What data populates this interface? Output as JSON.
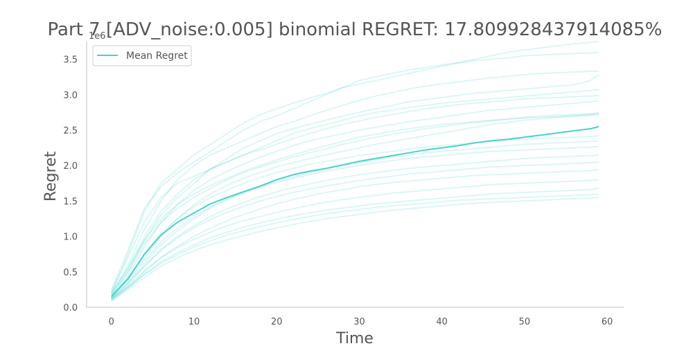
{
  "chart_data": {
    "type": "line",
    "title": "Part 7 [ADV_noise:0.005] binomial REGRET: 17.809928437914085%",
    "xlabel": "Time",
    "ylabel": "Regret",
    "y_offset_label": "1e6",
    "xlim": [
      -3,
      62
    ],
    "ylim": [
      0,
      3.75
    ],
    "xticks": [
      0,
      10,
      20,
      30,
      40,
      50,
      60
    ],
    "yticks": [
      0.0,
      0.5,
      1.0,
      1.5,
      2.0,
      2.5,
      3.0,
      3.5
    ],
    "xtick_labels": [
      "0",
      "10",
      "20",
      "30",
      "40",
      "50",
      "60"
    ],
    "ytick_labels": [
      "0.0",
      "0.5",
      "1.0",
      "1.5",
      "2.0",
      "2.5",
      "3.0",
      "3.5"
    ],
    "legend": {
      "placement": "top-left",
      "entries": [
        "Mean Regret"
      ]
    },
    "colors": {
      "series": "#48d1cc",
      "axis": "#cccccc",
      "text": "#555555"
    },
    "grid": false,
    "mean": {
      "name": "Mean Regret",
      "x": [
        0,
        2,
        4,
        6,
        8,
        10,
        12,
        14,
        16,
        18,
        20,
        22,
        24,
        26,
        28,
        30,
        32,
        34,
        36,
        38,
        40,
        42,
        44,
        46,
        48,
        50,
        52,
        54,
        56,
        58,
        59
      ],
      "y": [
        0.15,
        0.4,
        0.75,
        1.02,
        1.2,
        1.33,
        1.46,
        1.55,
        1.63,
        1.71,
        1.8,
        1.87,
        1.92,
        1.96,
        2.01,
        2.06,
        2.1,
        2.14,
        2.18,
        2.22,
        2.25,
        2.28,
        2.32,
        2.35,
        2.37,
        2.4,
        2.43,
        2.46,
        2.49,
        2.52,
        2.55
      ]
    },
    "runs_x": [
      0,
      2,
      4,
      6,
      8,
      10,
      12,
      14,
      16,
      18,
      20,
      22,
      24,
      26,
      28,
      30,
      32,
      34,
      36,
      38,
      40,
      42,
      44,
      46,
      48,
      50,
      52,
      54,
      56,
      58,
      59
    ],
    "runs": [
      [
        0.2,
        0.75,
        1.35,
        1.75,
        1.95,
        2.15,
        2.3,
        2.45,
        2.6,
        2.72,
        2.8,
        2.88,
        2.95,
        3.02,
        3.1,
        3.15,
        3.2,
        3.25,
        3.3,
        3.35,
        3.4,
        3.45,
        3.5,
        3.55,
        3.6,
        3.63,
        3.66,
        3.69,
        3.72,
        3.74,
        3.75
      ],
      [
        0.25,
        0.8,
        1.4,
        1.7,
        1.9,
        2.05,
        2.2,
        2.35,
        2.5,
        2.62,
        2.7,
        2.8,
        2.9,
        3.0,
        3.1,
        3.2,
        3.25,
        3.3,
        3.35,
        3.38,
        3.42,
        3.45,
        3.48,
        3.5,
        3.52,
        3.55,
        3.56,
        3.57,
        3.58,
        3.59,
        3.6
      ],
      [
        0.18,
        0.6,
        1.1,
        1.5,
        1.8,
        2.0,
        2.15,
        2.25,
        2.35,
        2.45,
        2.55,
        2.62,
        2.7,
        2.78,
        2.85,
        2.92,
        2.98,
        3.03,
        3.08,
        3.12,
        3.15,
        3.18,
        3.21,
        3.24,
        3.26,
        3.28,
        3.3,
        3.31,
        3.32,
        3.33,
        3.33
      ],
      [
        0.15,
        0.5,
        0.95,
        1.3,
        1.55,
        1.75,
        1.95,
        2.1,
        2.25,
        2.35,
        2.45,
        2.52,
        2.58,
        2.64,
        2.7,
        2.75,
        2.8,
        2.85,
        2.9,
        2.93,
        2.96,
        2.99,
        3.02,
        3.04,
        3.06,
        3.08,
        3.1,
        3.12,
        3.14,
        3.2,
        3.28
      ],
      [
        0.22,
        0.7,
        1.2,
        1.55,
        1.75,
        1.85,
        1.95,
        2.05,
        2.15,
        2.25,
        2.35,
        2.45,
        2.52,
        2.58,
        2.64,
        2.7,
        2.75,
        2.78,
        2.82,
        2.85,
        2.88,
        2.9,
        2.92,
        2.94,
        2.96,
        2.98,
        3.0,
        3.02,
        3.04,
        3.06,
        3.07
      ],
      [
        0.2,
        0.55,
        1.0,
        1.35,
        1.6,
        1.8,
        1.95,
        2.05,
        2.15,
        2.22,
        2.3,
        2.38,
        2.45,
        2.52,
        2.58,
        2.63,
        2.68,
        2.72,
        2.76,
        2.8,
        2.83,
        2.86,
        2.88,
        2.9,
        2.92,
        2.94,
        2.95,
        2.96,
        2.97,
        2.98,
        2.99
      ],
      [
        0.12,
        0.45,
        0.85,
        1.2,
        1.45,
        1.65,
        1.8,
        1.92,
        2.02,
        2.12,
        2.2,
        2.28,
        2.35,
        2.4,
        2.45,
        2.5,
        2.54,
        2.58,
        2.62,
        2.65,
        2.68,
        2.72,
        2.75,
        2.78,
        2.8,
        2.82,
        2.84,
        2.86,
        2.88,
        2.9,
        2.91
      ],
      [
        0.18,
        0.55,
        0.95,
        1.25,
        1.45,
        1.6,
        1.72,
        1.82,
        1.92,
        2.0,
        2.08,
        2.15,
        2.22,
        2.28,
        2.34,
        2.4,
        2.44,
        2.48,
        2.52,
        2.55,
        2.58,
        2.6,
        2.62,
        2.64,
        2.66,
        2.68,
        2.7,
        2.71,
        2.72,
        2.73,
        2.74
      ],
      [
        0.16,
        0.5,
        0.9,
        1.2,
        1.4,
        1.55,
        1.68,
        1.8,
        1.9,
        1.98,
        2.05,
        2.12,
        2.18,
        2.24,
        2.3,
        2.35,
        2.4,
        2.44,
        2.48,
        2.52,
        2.55,
        2.58,
        2.61,
        2.63,
        2.65,
        2.67,
        2.68,
        2.69,
        2.7,
        2.71,
        2.72
      ],
      [
        0.14,
        0.4,
        0.7,
        1.0,
        1.25,
        1.45,
        1.6,
        1.72,
        1.82,
        1.9,
        1.98,
        2.04,
        2.1,
        2.15,
        2.2,
        2.25,
        2.3,
        2.34,
        2.38,
        2.42,
        2.46,
        2.5,
        2.54,
        2.58,
        2.61,
        2.64,
        2.66,
        2.68,
        2.7,
        2.72,
        2.74
      ],
      [
        0.15,
        0.42,
        0.75,
        1.05,
        1.25,
        1.42,
        1.55,
        1.65,
        1.75,
        1.83,
        1.9,
        1.96,
        2.02,
        2.06,
        2.1,
        2.14,
        2.17,
        2.2,
        2.23,
        2.26,
        2.28,
        2.3,
        2.32,
        2.34,
        2.36,
        2.37,
        2.38,
        2.39,
        2.4,
        2.41,
        2.42
      ],
      [
        0.12,
        0.35,
        0.62,
        0.88,
        1.08,
        1.25,
        1.4,
        1.52,
        1.62,
        1.7,
        1.78,
        1.84,
        1.9,
        1.95,
        2.0,
        2.04,
        2.08,
        2.12,
        2.15,
        2.18,
        2.2,
        2.22,
        2.24,
        2.26,
        2.28,
        2.3,
        2.31,
        2.32,
        2.33,
        2.34,
        2.35
      ],
      [
        0.14,
        0.38,
        0.66,
        0.92,
        1.12,
        1.28,
        1.42,
        1.53,
        1.62,
        1.7,
        1.76,
        1.82,
        1.87,
        1.92,
        1.96,
        2.0,
        2.04,
        2.07,
        2.1,
        2.12,
        2.14,
        2.16,
        2.18,
        2.2,
        2.21,
        2.22,
        2.23,
        2.24,
        2.25,
        2.26,
        2.27
      ],
      [
        0.11,
        0.32,
        0.58,
        0.82,
        1.0,
        1.15,
        1.28,
        1.39,
        1.48,
        1.56,
        1.63,
        1.69,
        1.74,
        1.79,
        1.83,
        1.87,
        1.9,
        1.93,
        1.96,
        1.98,
        2.0,
        2.02,
        2.04,
        2.06,
        2.08,
        2.1,
        2.11,
        2.12,
        2.13,
        2.14,
        2.15
      ],
      [
        0.13,
        0.34,
        0.58,
        0.8,
        0.98,
        1.12,
        1.24,
        1.34,
        1.42,
        1.5,
        1.56,
        1.62,
        1.67,
        1.71,
        1.75,
        1.79,
        1.82,
        1.85,
        1.88,
        1.9,
        1.92,
        1.94,
        1.96,
        1.98,
        1.99,
        2.0,
        2.01,
        2.02,
        2.03,
        2.04,
        2.05
      ],
      [
        0.1,
        0.28,
        0.5,
        0.7,
        0.86,
        1.0,
        1.12,
        1.22,
        1.31,
        1.39,
        1.46,
        1.52,
        1.57,
        1.62,
        1.66,
        1.7,
        1.73,
        1.76,
        1.78,
        1.8,
        1.82,
        1.84,
        1.86,
        1.87,
        1.88,
        1.89,
        1.9,
        1.91,
        1.92,
        1.93,
        1.94
      ],
      [
        0.12,
        0.3,
        0.52,
        0.7,
        0.84,
        0.96,
        1.06,
        1.15,
        1.22,
        1.28,
        1.34,
        1.39,
        1.44,
        1.48,
        1.52,
        1.55,
        1.58,
        1.61,
        1.63,
        1.65,
        1.67,
        1.69,
        1.71,
        1.73,
        1.74,
        1.75,
        1.76,
        1.77,
        1.78,
        1.79,
        1.8
      ],
      [
        0.1,
        0.27,
        0.47,
        0.64,
        0.77,
        0.88,
        0.98,
        1.06,
        1.13,
        1.19,
        1.24,
        1.29,
        1.33,
        1.37,
        1.4,
        1.43,
        1.46,
        1.48,
        1.5,
        1.52,
        1.54,
        1.56,
        1.58,
        1.6,
        1.61,
        1.62,
        1.63,
        1.64,
        1.65,
        1.66,
        1.68
      ],
      [
        0.12,
        0.28,
        0.46,
        0.62,
        0.74,
        0.85,
        0.94,
        1.02,
        1.08,
        1.14,
        1.19,
        1.24,
        1.28,
        1.32,
        1.35,
        1.38,
        1.41,
        1.43,
        1.45,
        1.47,
        1.49,
        1.51,
        1.52,
        1.53,
        1.54,
        1.55,
        1.56,
        1.57,
        1.58,
        1.59,
        1.6
      ],
      [
        0.09,
        0.25,
        0.42,
        0.58,
        0.7,
        0.8,
        0.88,
        0.95,
        1.01,
        1.07,
        1.12,
        1.17,
        1.21,
        1.25,
        1.28,
        1.31,
        1.34,
        1.37,
        1.39,
        1.41,
        1.43,
        1.45,
        1.47,
        1.48,
        1.49,
        1.5,
        1.51,
        1.52,
        1.53,
        1.54,
        1.55
      ]
    ]
  }
}
